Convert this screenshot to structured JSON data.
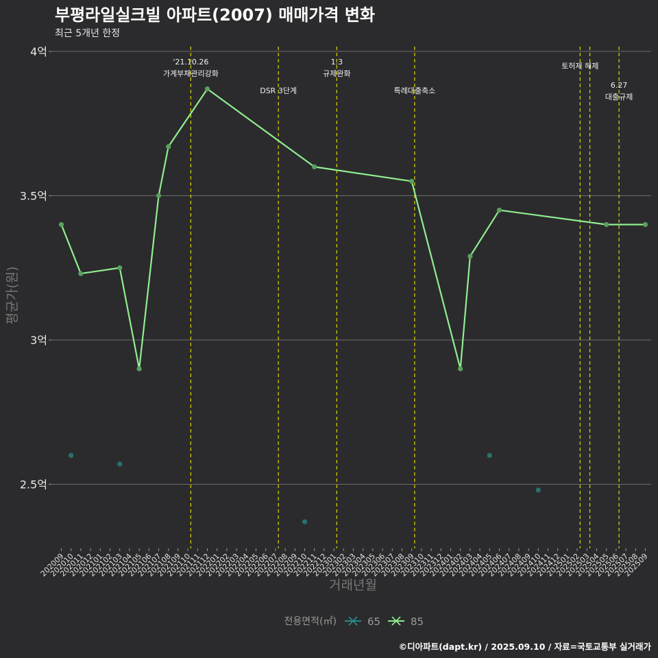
{
  "chart_data": {
    "type": "line",
    "title": "부평라일실크빌 아파트(2007) 매매가격 변화",
    "subtitle": "최근 5개년 한정",
    "xlabel": "거래년월",
    "ylabel": "평균가(원)",
    "caption": "©디아파트(dapt.kr) / 2025.09.10 / 자료=국토교통부 실거래가",
    "ylim": [
      2.3,
      4.05
    ],
    "yticks": [
      {
        "value": 2.5,
        "label": "2.5억"
      },
      {
        "value": 3.0,
        "label": "3억"
      },
      {
        "value": 3.5,
        "label": "3.5억"
      },
      {
        "value": 4.0,
        "label": "4억"
      }
    ],
    "categories": [
      "202009",
      "202010",
      "202011",
      "202012",
      "202101",
      "202102",
      "202103",
      "202104",
      "202105",
      "202106",
      "202107",
      "202108",
      "202109",
      "202110",
      "202111",
      "202112",
      "202201",
      "202202",
      "202203",
      "202204",
      "202205",
      "202206",
      "202207",
      "202208",
      "202209",
      "202210",
      "202211",
      "202212",
      "202301",
      "202302",
      "202303",
      "202304",
      "202305",
      "202306",
      "202307",
      "202308",
      "202309",
      "202310",
      "202311",
      "202312",
      "202401",
      "202402",
      "202403",
      "202404",
      "202405",
      "202406",
      "202407",
      "202408",
      "202409",
      "202410",
      "202411",
      "202412",
      "202501",
      "202502",
      "202503",
      "202504",
      "202505",
      "202506",
      "202507",
      "202508",
      "202509"
    ],
    "legend": {
      "title": "전용면적(㎡)",
      "position": "bottom"
    },
    "series": [
      {
        "name": "85",
        "color": "#90ee90",
        "style": "line",
        "points": [
          {
            "x": "202009",
            "y": 3.4
          },
          {
            "x": "202011",
            "y": 3.23
          },
          {
            "x": "202103",
            "y": 3.25
          },
          {
            "x": "202105",
            "y": 2.9
          },
          {
            "x": "202107",
            "y": 3.5
          },
          {
            "x": "202108",
            "y": 3.67
          },
          {
            "x": "202112",
            "y": 3.87
          },
          {
            "x": "202211",
            "y": 3.6
          },
          {
            "x": "202309",
            "y": 3.55
          },
          {
            "x": "202402",
            "y": 2.9
          },
          {
            "x": "202403",
            "y": 3.29
          },
          {
            "x": "202406",
            "y": 3.45
          },
          {
            "x": "202505",
            "y": 3.4
          },
          {
            "x": "202509",
            "y": 3.4
          }
        ]
      },
      {
        "name": "65",
        "color": "#2a8a86",
        "style": "points",
        "points": [
          {
            "x": "202010",
            "y": 2.6
          },
          {
            "x": "202103",
            "y": 2.57
          },
          {
            "x": "202210",
            "y": 2.37
          },
          {
            "x": "202405",
            "y": 2.6
          },
          {
            "x": "202410",
            "y": 2.48
          }
        ]
      }
    ],
    "events": [
      {
        "x": 13.3,
        "lines": [
          "'21.10.26",
          "가계부채관리강화"
        ],
        "level": 1
      },
      {
        "x": 22.3,
        "lines": [
          "DSR 3단계"
        ],
        "level": 2
      },
      {
        "x": 28.3,
        "lines": [
          "1.3",
          "규제완화"
        ],
        "level": 1
      },
      {
        "x": 36.3,
        "lines": [
          "특례대출축소"
        ],
        "level": 2
      },
      {
        "x": 53.3,
        "lines": [
          "토허제 해제"
        ],
        "level": 1
      },
      {
        "x": 54.3,
        "lines": [],
        "level": 1
      },
      {
        "x": 57.3,
        "lines": [
          "6.27",
          "대출규제"
        ],
        "level": 3
      }
    ]
  }
}
